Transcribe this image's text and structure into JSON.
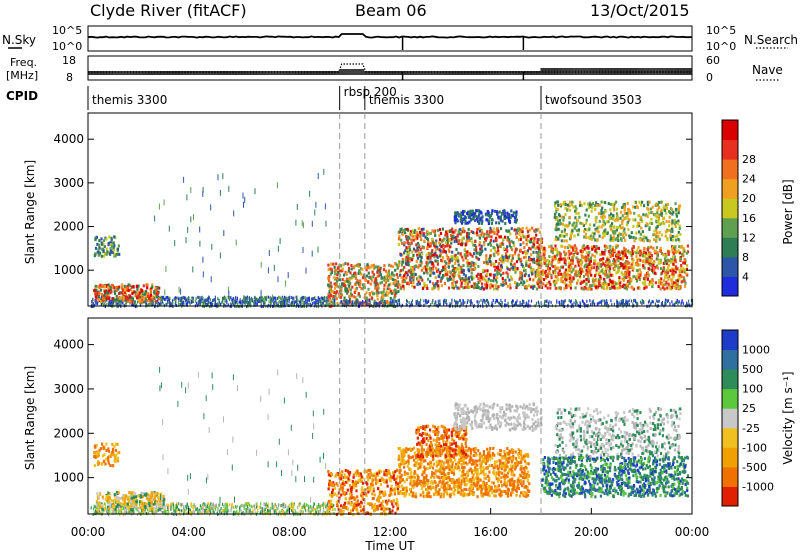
{
  "header": {
    "station": "Clyde River (fitACF)",
    "beam": "Beam 06",
    "date": "13/Oct/2015"
  },
  "strip_panel": {
    "left_label_top": "N.Sky",
    "right_label_top": "N.Search",
    "left_axis_top_ticks": [
      "10^5",
      "10^0"
    ],
    "right_axis_top_ticks": [
      "10^5",
      "10^0"
    ],
    "left_label_mid_1": "Freq.",
    "left_label_mid_2": "[MHz]",
    "right_label_mid": "Nave",
    "left_axis_mid_ticks": [
      "18",
      "8"
    ],
    "right_axis_mid_ticks": [
      "60",
      "0"
    ],
    "cpid_label": "CPID",
    "cpid_segments": [
      {
        "label": "themis 3300",
        "start": 0,
        "end": 10.0
      },
      {
        "label": "rbsp 200",
        "start": 10.0,
        "end": 11.0
      },
      {
        "label": "themis 3300",
        "start": 11.0,
        "end": 18.0
      },
      {
        "label": "twofsound 3503",
        "start": 18.0,
        "end": 24.0
      }
    ]
  },
  "chart_data": [
    {
      "type": "heatmap",
      "name": "power",
      "ylabel": "Slant Range [km]",
      "yticks": [
        "1000",
        "2000",
        "3000",
        "4000"
      ],
      "ylim": [
        180,
        4600
      ],
      "xlim": [
        0,
        24
      ],
      "colorbar_label": "Power [dB]",
      "colorbar_ticks": [
        "4",
        "8",
        "12",
        "16",
        "20",
        "24",
        "28"
      ],
      "colorbar_colors": [
        "#1e2cdc",
        "#2d55a8",
        "#2e7d55",
        "#5fa050",
        "#c8c820",
        "#f0a020",
        "#f07020",
        "#e83020",
        "#d80000"
      ]
    },
    {
      "type": "heatmap",
      "name": "velocity",
      "ylabel": "Slant Range [km]",
      "yticks": [
        "1000",
        "2000",
        "3000",
        "4000"
      ],
      "ylim": [
        180,
        4600
      ],
      "xlim": [
        0,
        24
      ],
      "xticks": [
        "00:00",
        "04:00",
        "08:00",
        "12:00",
        "16:00",
        "20:00",
        "00:00"
      ],
      "xlabel": "Time UT",
      "colorbar_label": "Velocity [m s⁻¹]",
      "colorbar_ticks": [
        "1000",
        "500",
        "100",
        "25",
        "-25",
        "-100",
        "-500",
        "-1000"
      ],
      "colorbar_colors": [
        "#1e3cc8",
        "#3070a0",
        "#2e8c5a",
        "#5cc83c",
        "#c8c8c8",
        "#f0c020",
        "#f0a000",
        "#f07000",
        "#e02000"
      ]
    }
  ],
  "colors": {
    "ground_scatter": "#b4b4b4",
    "axis": "#000000",
    "dashed": "#999999"
  }
}
